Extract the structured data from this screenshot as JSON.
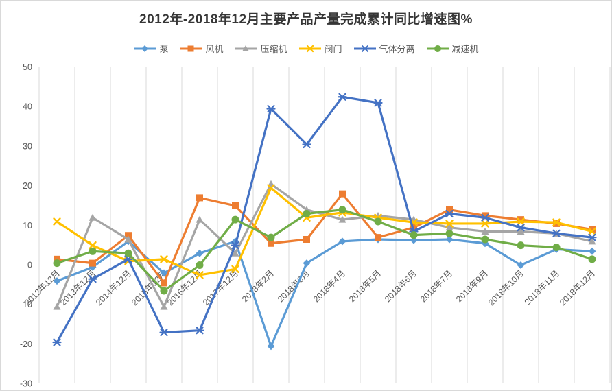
{
  "title": "2012年-2018年12月主要产品产量完成累计同比增速图%",
  "chart_data": {
    "type": "line",
    "title": "2012年-2018年12月主要产品产量完成累计同比增速图%",
    "categories": [
      "2012年12月",
      "2013年12月",
      "2014年12月",
      "2015年12月",
      "2016年12月",
      "2017年12月",
      "2018年2月",
      "2018年3月",
      "2018年4月",
      "2018年5月",
      "2018年6月",
      "2018年7月",
      "2018年9月",
      "2018年10月",
      "2018年11月",
      "2018年12月"
    ],
    "series": [
      {
        "key": "pump",
        "name": "泵",
        "color": "#5B9BD5",
        "marker": "diamond",
        "values": [
          -4,
          -0.5,
          6,
          -2,
          3,
          6,
          -20.5,
          0.5,
          6,
          6.5,
          6.3,
          6.5,
          5.5,
          0,
          4,
          3.5
        ]
      },
      {
        "key": "fan",
        "name": "风机",
        "color": "#ED7D31",
        "marker": "square",
        "values": [
          1.5,
          0.5,
          7.5,
          -4.5,
          17,
          15,
          5.5,
          6.5,
          18,
          7,
          9.5,
          14,
          12.5,
          11.5,
          10.5,
          9
        ]
      },
      {
        "key": "compressor",
        "name": "压缩机",
        "color": "#A5A5A5",
        "marker": "triangle",
        "values": [
          -10.5,
          12,
          6.5,
          -10.5,
          11.5,
          3,
          20.5,
          14,
          11.5,
          12.5,
          11.5,
          9.5,
          8.5,
          8.5,
          8,
          6
        ]
      },
      {
        "key": "valve",
        "name": "阀门",
        "color": "#FFC000",
        "marker": "x",
        "values": [
          11,
          5,
          1,
          1.5,
          -2.5,
          -1,
          19.5,
          12,
          13.3,
          12,
          10.8,
          10.5,
          10.5,
          11,
          10.8,
          8.5
        ]
      },
      {
        "key": "gas-separation",
        "name": "气体分离",
        "color": "#4472C4",
        "marker": "asterisk",
        "values": [
          -19.5,
          -3.5,
          1.5,
          -17,
          -16.5,
          5,
          39.5,
          30.5,
          42.5,
          41,
          8.5,
          13,
          12,
          9.5,
          8,
          7
        ]
      },
      {
        "key": "reducer",
        "name": "减速机",
        "color": "#70AD47",
        "marker": "circle",
        "values": [
          0.5,
          3.5,
          3,
          -6.5,
          0,
          11.5,
          7,
          13,
          14,
          11,
          7.6,
          8,
          6.5,
          5,
          4.5,
          1.5
        ]
      }
    ],
    "ylim": [
      -30,
      50
    ],
    "yticks": [
      50,
      40,
      30,
      20,
      10,
      0,
      -10,
      -20,
      -30
    ],
    "xlabel": "",
    "ylabel": "",
    "legend_position": "top",
    "grid": "vertical-only",
    "grid_color": "#d9d9d9",
    "axis_text_color": "#595959"
  }
}
